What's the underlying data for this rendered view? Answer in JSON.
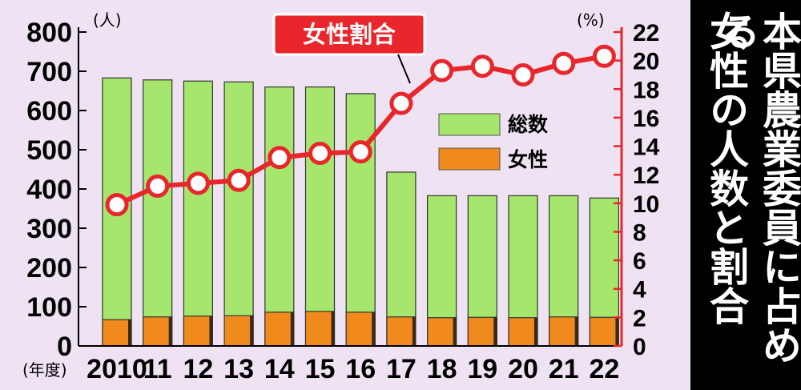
{
  "side_title": {
    "line1": "本県農業委員に占める",
    "line2": "女性の人数と割合"
  },
  "chart_data": {
    "type": "bar",
    "categories": [
      "2010",
      "11",
      "12",
      "13",
      "14",
      "15",
      "16",
      "17",
      "18",
      "19",
      "20",
      "21",
      "22"
    ],
    "x_axis_prefix": "(年度)",
    "left_axis": {
      "unit_label": "(人)",
      "ylim": [
        0,
        800
      ],
      "ticks": [
        "0",
        "100",
        "200",
        "300",
        "400",
        "500",
        "600",
        "700",
        "800"
      ]
    },
    "right_axis": {
      "unit_label": "(%)",
      "ylim": [
        0,
        22
      ],
      "ticks": [
        "0",
        "2",
        "4",
        "6",
        "8",
        "10",
        "12",
        "14",
        "16",
        "18",
        "20",
        "22"
      ]
    },
    "series": [
      {
        "name": "総数",
        "axis": "left",
        "color": "#a6e66c",
        "values": [
          683,
          678,
          675,
          673,
          660,
          660,
          643,
          443,
          383,
          383,
          383,
          383,
          377
        ]
      },
      {
        "name": "女性",
        "axis": "left",
        "color": "#f08a1c",
        "values": [
          67,
          74,
          76,
          77,
          86,
          88,
          86,
          74,
          72,
          73,
          72,
          74,
          73
        ]
      },
      {
        "name": "女性割合",
        "axis": "right",
        "type": "line",
        "color": "#e8262c",
        "values": [
          9.9,
          11.2,
          11.4,
          11.6,
          13.2,
          13.5,
          13.6,
          17.0,
          19.3,
          19.6,
          19.0,
          19.8,
          20.3
        ]
      }
    ],
    "legend": {
      "placement": "center-right",
      "entries": [
        "総数",
        "女性"
      ]
    },
    "callout": "女性割合",
    "grid": false
  }
}
